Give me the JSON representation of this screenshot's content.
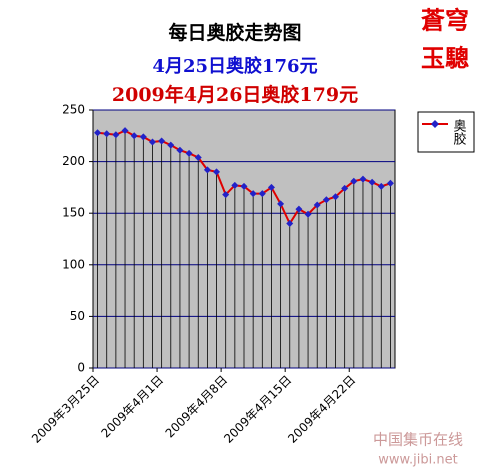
{
  "chart_data": {
    "type": "line",
    "title": "每日奥胶走势图",
    "subtitle": "4月25日奥胶176元",
    "subtitle2": "2009年4月26日奥胶179元",
    "categories": [
      "2009年3月25日",
      null,
      null,
      null,
      null,
      null,
      null,
      "2009年4月1日",
      null,
      null,
      null,
      null,
      null,
      null,
      "2009年4月8日",
      null,
      null,
      null,
      null,
      null,
      null,
      "2009年4月15日",
      null,
      null,
      null,
      null,
      null,
      null,
      "2009年4月22日",
      null,
      null,
      null,
      null
    ],
    "series": [
      {
        "name": "奥胶",
        "color": "#e00000",
        "marker_color": "#2222c8",
        "values": [
          228,
          227,
          226,
          230,
          225,
          224,
          219,
          220,
          216,
          211,
          208,
          204,
          192,
          190,
          168,
          177,
          176,
          169,
          169,
          175,
          159,
          140,
          154,
          149,
          158,
          163,
          166,
          174,
          181,
          183,
          180,
          176,
          179
        ]
      }
    ],
    "ylim": [
      0,
      250
    ],
    "yticks": [
      0,
      50,
      100,
      150,
      200,
      250
    ],
    "grid": true,
    "drop_lines": true,
    "legend": "right",
    "plot_background": "#c0c0c0"
  },
  "stamp": [
    "蒼穹",
    "玉驄"
  ],
  "watermark": [
    "中国集币在线",
    "www.jibi.net"
  ]
}
